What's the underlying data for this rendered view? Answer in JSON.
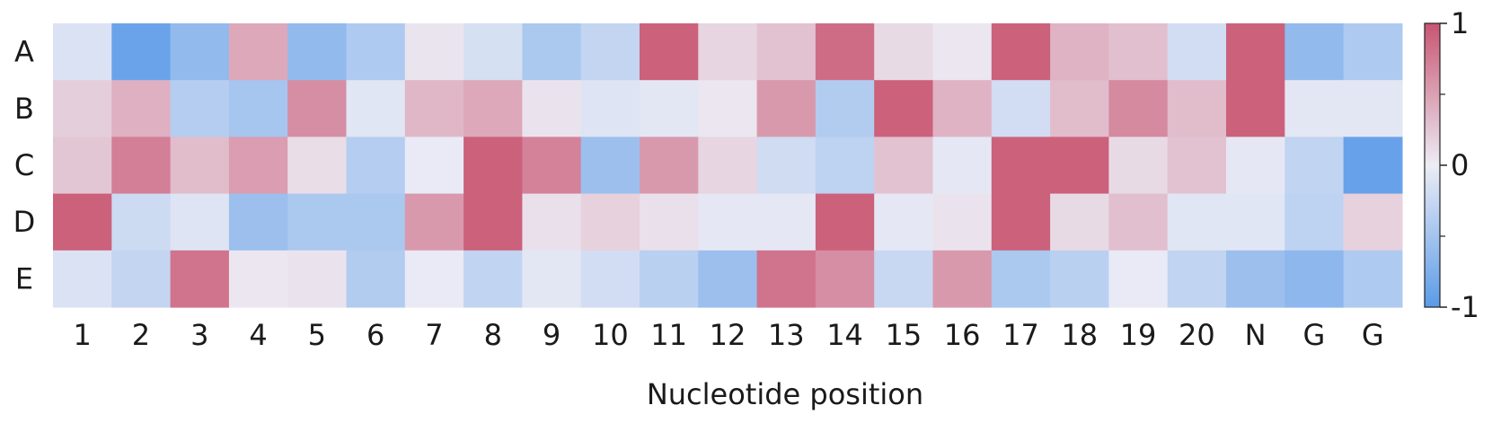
{
  "chart_data": {
    "type": "heatmap",
    "title": "",
    "xlabel": "Nucleotide position",
    "ylabel": "",
    "x_categories": [
      "1",
      "2",
      "3",
      "4",
      "5",
      "6",
      "7",
      "8",
      "9",
      "10",
      "11",
      "12",
      "13",
      "14",
      "15",
      "16",
      "17",
      "18",
      "19",
      "20",
      "N",
      "G",
      "G"
    ],
    "y_categories": [
      "A",
      "B",
      "C",
      "D",
      "E"
    ],
    "values": [
      [
        -0.12,
        -0.9,
        -0.62,
        0.45,
        -0.62,
        -0.42,
        0.05,
        -0.15,
        -0.45,
        -0.28,
        0.92,
        0.15,
        0.28,
        0.85,
        0.12,
        0.04,
        0.92,
        0.38,
        0.3,
        -0.18,
        0.92,
        -0.62,
        -0.42
      ],
      [
        0.2,
        0.4,
        -0.38,
        -0.48,
        0.62,
        -0.08,
        0.35,
        0.45,
        0.06,
        -0.1,
        -0.06,
        0.04,
        0.55,
        -0.4,
        0.92,
        0.38,
        -0.18,
        0.32,
        0.65,
        0.32,
        0.92,
        -0.06,
        -0.06
      ],
      [
        0.25,
        0.72,
        0.32,
        0.52,
        0.1,
        -0.38,
        -0.02,
        0.92,
        0.7,
        -0.55,
        0.55,
        0.15,
        -0.2,
        -0.32,
        0.28,
        -0.05,
        0.92,
        0.92,
        0.12,
        0.28,
        -0.05,
        -0.3,
        -0.92
      ],
      [
        0.92,
        -0.22,
        -0.1,
        -0.55,
        -0.45,
        -0.45,
        0.55,
        0.92,
        0.08,
        0.18,
        0.08,
        -0.05,
        -0.05,
        0.92,
        -0.05,
        0.06,
        0.92,
        0.12,
        0.3,
        -0.08,
        -0.08,
        -0.32,
        0.18
      ],
      [
        -0.12,
        -0.28,
        0.8,
        0.04,
        0.06,
        -0.4,
        -0.02,
        -0.3,
        -0.06,
        -0.18,
        -0.35,
        -0.55,
        0.8,
        0.62,
        -0.25,
        0.55,
        -0.45,
        -0.35,
        -0.02,
        -0.3,
        -0.55,
        -0.65,
        -0.42
      ]
    ],
    "value_range": [
      -1,
      1
    ],
    "colorscale": {
      "low": "#5b9be8",
      "mid": "#ececf5",
      "high": "#c95572"
    },
    "colorbar": {
      "ticks": [
        {
          "value": 1,
          "label": "1"
        },
        {
          "value": 0,
          "label": "0"
        },
        {
          "value": -1,
          "label": "-1"
        }
      ],
      "minor_ticks": [
        0.5,
        -0.5
      ],
      "placement": "right"
    },
    "grid": false,
    "legend": "none"
  }
}
